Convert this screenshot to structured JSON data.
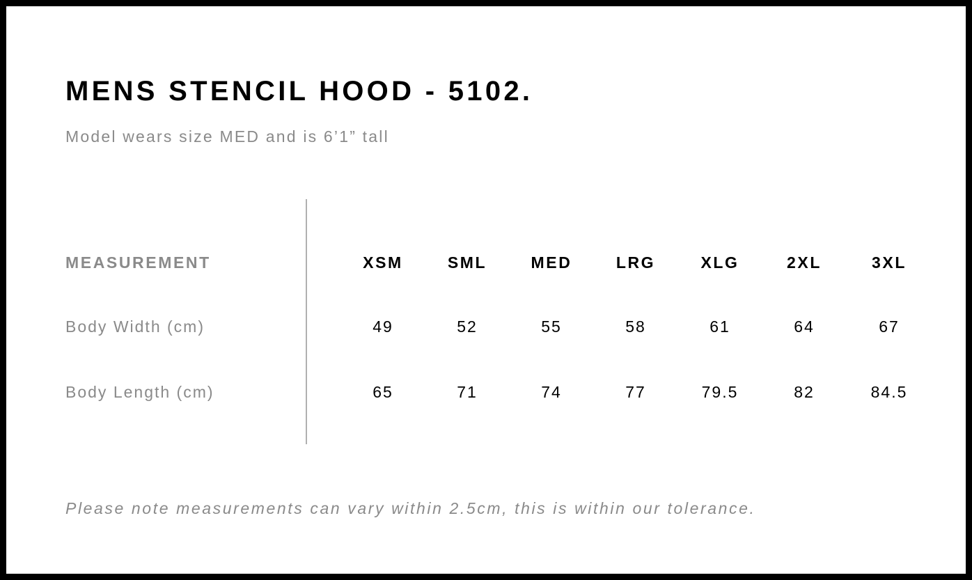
{
  "title": "MENS STENCIL HOOD - 5102.",
  "subtitle": "Model wears size MED and is 6’1” tall",
  "table": {
    "header_label": "MEASUREMENT",
    "sizes": [
      "XSM",
      "SML",
      "MED",
      "LRG",
      "XLG",
      "2XL",
      "3XL"
    ],
    "rows": [
      {
        "label": "Body Width (cm)",
        "values": [
          "49",
          "52",
          "55",
          "58",
          "61",
          "64",
          "67"
        ]
      },
      {
        "label": "Body Length (cm)",
        "values": [
          "65",
          "71",
          "74",
          "77",
          "79.5",
          "82",
          "84.5"
        ]
      }
    ]
  },
  "note": "Please note measurements can vary within 2.5cm, this is within our tolerance."
}
